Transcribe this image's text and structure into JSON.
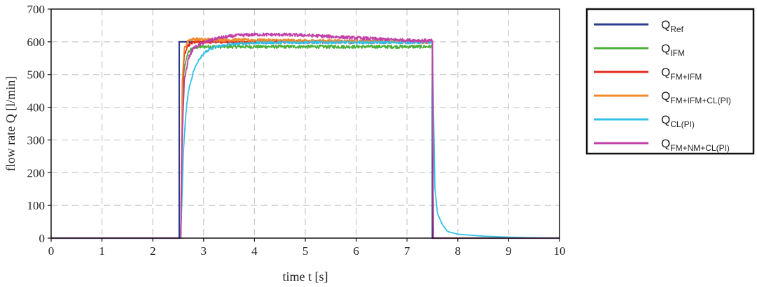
{
  "chart_data": {
    "type": "line",
    "xlabel": "time t [s]",
    "ylabel": "flow rate Q [l/min]",
    "xlim": [
      0,
      10
    ],
    "ylim": [
      0,
      700
    ],
    "xticks": [
      "0",
      "1",
      "2",
      "3",
      "4",
      "5",
      "6",
      "7",
      "8",
      "9",
      "10"
    ],
    "yticks": [
      "0",
      "100",
      "200",
      "300",
      "400",
      "500",
      "600",
      "700"
    ],
    "grid": true,
    "legend_position": "outside-right",
    "series": [
      {
        "id": "q_ref",
        "name": "Q",
        "sub": "Ref",
        "color": "#2b3a8c",
        "points": [
          [
            0,
            0
          ],
          [
            2.52,
            0
          ],
          [
            2.52,
            600
          ],
          [
            7.5,
            600
          ],
          [
            7.5,
            0
          ],
          [
            10,
            0
          ]
        ]
      },
      {
        "id": "q_ifm",
        "name": "Q",
        "sub": "IFM",
        "color": "#4caf3a",
        "points": [
          [
            0,
            0
          ],
          [
            2.55,
            0
          ],
          [
            2.58,
            400
          ],
          [
            2.62,
            520
          ],
          [
            2.7,
            570
          ],
          [
            2.8,
            582
          ],
          [
            3,
            585
          ],
          [
            4,
            585
          ],
          [
            5,
            585
          ],
          [
            6,
            585
          ],
          [
            7,
            585
          ],
          [
            7.5,
            585
          ],
          [
            7.52,
            0
          ],
          [
            10,
            0
          ]
        ]
      },
      {
        "id": "q_fm_ifm",
        "name": "Q",
        "sub": "FM+IFM",
        "color": "#e02a1f",
        "points": [
          [
            0,
            0
          ],
          [
            2.55,
            0
          ],
          [
            2.58,
            450
          ],
          [
            2.62,
            560
          ],
          [
            2.7,
            590
          ],
          [
            2.8,
            598
          ],
          [
            3,
            600
          ],
          [
            4,
            600
          ],
          [
            5,
            600
          ],
          [
            6,
            600
          ],
          [
            7,
            600
          ],
          [
            7.5,
            600
          ],
          [
            7.52,
            0
          ],
          [
            10,
            0
          ]
        ]
      },
      {
        "id": "q_fm_ifm_cl",
        "name": "Q",
        "sub": "FM+IFM+CL(PI)",
        "color": "#f08a2c",
        "points": [
          [
            0,
            0
          ],
          [
            2.55,
            0
          ],
          [
            2.58,
            480
          ],
          [
            2.62,
            580
          ],
          [
            2.7,
            605
          ],
          [
            2.8,
            608
          ],
          [
            3,
            607
          ],
          [
            4,
            605
          ],
          [
            5,
            603
          ],
          [
            6,
            602
          ],
          [
            7,
            601
          ],
          [
            7.5,
            600
          ],
          [
            7.52,
            0
          ],
          [
            10,
            0
          ]
        ]
      },
      {
        "id": "q_cl",
        "name": "Q",
        "sub": "CL(PI)",
        "color": "#33c0e8",
        "points": [
          [
            0,
            0
          ],
          [
            2.55,
            0
          ],
          [
            2.58,
            150
          ],
          [
            2.6,
            260
          ],
          [
            2.65,
            380
          ],
          [
            2.7,
            450
          ],
          [
            2.8,
            510
          ],
          [
            2.9,
            545
          ],
          [
            3,
            565
          ],
          [
            3.2,
            583
          ],
          [
            3.5,
            592
          ],
          [
            4,
            597
          ],
          [
            5,
            598
          ],
          [
            6,
            598
          ],
          [
            7,
            598
          ],
          [
            7.5,
            598
          ],
          [
            7.52,
            400
          ],
          [
            7.55,
            150
          ],
          [
            7.6,
            75
          ],
          [
            7.7,
            40
          ],
          [
            7.8,
            20
          ],
          [
            8,
            12
          ],
          [
            8.5,
            6
          ],
          [
            9,
            3
          ],
          [
            9.5,
            1
          ],
          [
            10,
            0
          ]
        ]
      },
      {
        "id": "q_fm_nm_cl",
        "name": "Q",
        "sub": "FM+NM+CL(PI)",
        "color": "#c240a8",
        "points": [
          [
            0,
            0
          ],
          [
            2.55,
            0
          ],
          [
            2.58,
            320
          ],
          [
            2.62,
            480
          ],
          [
            2.7,
            550
          ],
          [
            2.8,
            580
          ],
          [
            3,
            598
          ],
          [
            3.3,
            612
          ],
          [
            3.7,
            620
          ],
          [
            4,
            622
          ],
          [
            4.5,
            622
          ],
          [
            5,
            620
          ],
          [
            5.5,
            616
          ],
          [
            6,
            612
          ],
          [
            6.5,
            608
          ],
          [
            7,
            605
          ],
          [
            7.5,
            603
          ],
          [
            7.52,
            0
          ],
          [
            10,
            0
          ]
        ]
      }
    ]
  }
}
